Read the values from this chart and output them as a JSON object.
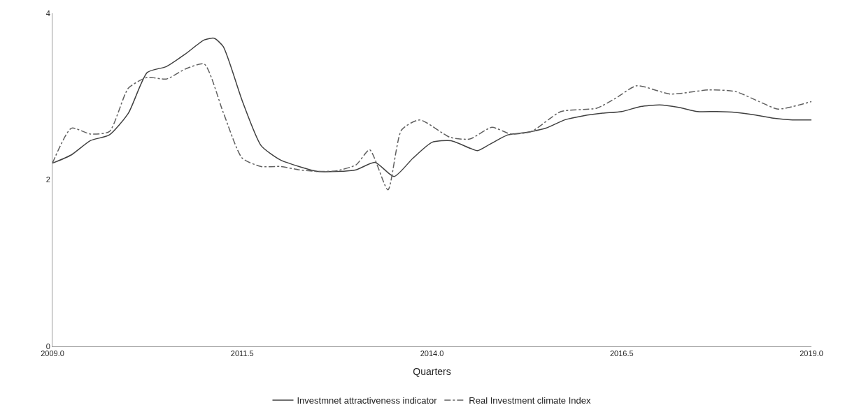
{
  "chart_data": {
    "type": "line",
    "xlabel": "Quarters",
    "xlim": [
      2009,
      2019
    ],
    "xticks": [
      {
        "value": 2009,
        "label": "2009.0"
      },
      {
        "value": 2011.5,
        "label": "2011.5"
      },
      {
        "value": 2014,
        "label": "2014.0"
      },
      {
        "value": 2016.5,
        "label": "2016.5"
      },
      {
        "value": 2019,
        "label": "2019.0"
      }
    ],
    "ylim": [
      0,
      4
    ],
    "yticks": [
      0,
      2,
      4
    ],
    "legend": "bottom",
    "series": [
      {
        "name": "Investmnet attractiveness indicator",
        "color": "#404040",
        "line_style": "solid",
        "x": [
          2009.0,
          2009.25,
          2009.5,
          2009.75,
          2010.0,
          2010.25,
          2010.5,
          2010.75,
          2011.0,
          2011.13,
          2011.25,
          2011.5,
          2011.75,
          2012.0,
          2012.25,
          2012.5,
          2012.75,
          2013.0,
          2013.25,
          2013.5,
          2013.75,
          2014.0,
          2014.25,
          2014.5,
          2014.6,
          2014.75,
          2015.0,
          2015.25,
          2015.5,
          2015.75,
          2016.0,
          2016.25,
          2016.5,
          2016.75,
          2017.0,
          2017.25,
          2017.5,
          2017.75,
          2018.0,
          2018.25,
          2018.5,
          2018.75,
          2019.0
        ],
        "values": [
          2.2,
          2.3,
          2.47,
          2.54,
          2.8,
          3.29,
          3.36,
          3.51,
          3.68,
          3.7,
          3.6,
          2.95,
          2.41,
          2.24,
          2.16,
          2.1,
          2.1,
          2.12,
          2.21,
          2.04,
          2.26,
          2.45,
          2.47,
          2.38,
          2.35,
          2.42,
          2.54,
          2.57,
          2.62,
          2.72,
          2.77,
          2.8,
          2.82,
          2.88,
          2.9,
          2.87,
          2.82,
          2.82,
          2.81,
          2.78,
          2.74,
          2.72,
          2.72
        ]
      },
      {
        "name": "Real Investment climate Index",
        "color": "#606060",
        "line_style": "dashed",
        "x": [
          2009.0,
          2009.25,
          2009.5,
          2009.75,
          2010.0,
          2010.25,
          2010.5,
          2010.75,
          2011.0,
          2011.25,
          2011.5,
          2011.75,
          2012.0,
          2012.25,
          2012.5,
          2012.75,
          2013.0,
          2013.18,
          2013.42,
          2013.6,
          2013.84,
          2014.24,
          2014.5,
          2014.79,
          2015.04,
          2015.31,
          2015.7,
          2016.17,
          2016.42,
          2016.7,
          2017.14,
          2017.65,
          2018.0,
          2018.31,
          2018.56,
          2019.0
        ],
        "values": [
          2.2,
          2.62,
          2.55,
          2.58,
          3.1,
          3.23,
          3.21,
          3.33,
          3.39,
          2.81,
          2.26,
          2.16,
          2.16,
          2.12,
          2.1,
          2.11,
          2.18,
          2.36,
          1.88,
          2.6,
          2.72,
          2.51,
          2.49,
          2.63,
          2.55,
          2.58,
          2.82,
          2.86,
          2.98,
          3.13,
          3.03,
          3.08,
          3.06,
          2.94,
          2.85,
          2.94
        ]
      }
    ]
  }
}
